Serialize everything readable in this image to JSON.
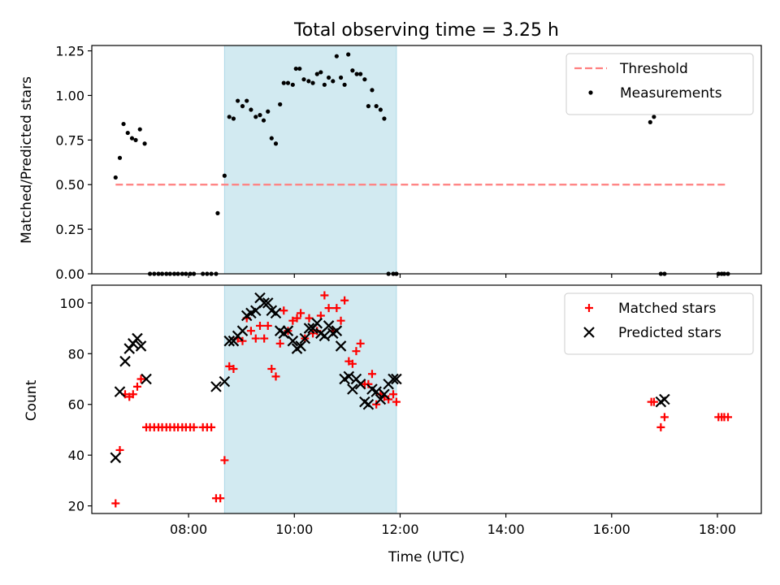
{
  "chart_data": [
    {
      "type": "scatter",
      "title": "Total observing time = 3.25 h",
      "xlabel": "",
      "ylabel": "Matched/Predicted stars",
      "xlim": [
        6.17,
        18.83
      ],
      "ylim": [
        0.0,
        1.28
      ],
      "yticks": [
        0.0,
        0.25,
        0.5,
        0.75,
        1.0,
        1.25
      ],
      "ytick_labels": [
        "0.00",
        "0.25",
        "0.50",
        "0.75",
        "1.00",
        "1.25"
      ],
      "xticks": [
        8,
        10,
        12,
        14,
        16,
        18
      ],
      "show_xtick_labels": false,
      "grid": false,
      "legend": "top-right",
      "highlight_span": {
        "x0": 8.68,
        "x1": 11.93,
        "color": "#add8e6"
      },
      "threshold": {
        "name": "Threshold",
        "value": 0.5,
        "x0": 6.62,
        "x1": 18.2,
        "color": "#ff7f7f"
      },
      "series": [
        {
          "name": "Measurements",
          "color": "#000000",
          "x": [
            6.62,
            6.7,
            6.77,
            6.85,
            6.93,
            7.0,
            7.08,
            7.17,
            7.27,
            7.35,
            7.43,
            7.5,
            7.58,
            7.65,
            7.73,
            7.8,
            7.88,
            7.95,
            8.03,
            8.1,
            8.27,
            8.35,
            8.43,
            8.52,
            8.55,
            8.68,
            8.77,
            8.85,
            8.93,
            9.02,
            9.1,
            9.18,
            9.27,
            9.35,
            9.42,
            9.5,
            9.57,
            9.65,
            9.73,
            9.8,
            9.88,
            9.97,
            10.03,
            10.1,
            10.18,
            10.27,
            10.35,
            10.43,
            10.5,
            10.57,
            10.65,
            10.73,
            10.8,
            10.88,
            10.95,
            11.02,
            11.1,
            11.18,
            11.25,
            11.33,
            11.4,
            11.47,
            11.55,
            11.63,
            11.7,
            11.78,
            11.87,
            11.93,
            16.73,
            16.8,
            16.93,
            17.0,
            18.02,
            18.08,
            18.13,
            18.2
          ],
          "y": [
            0.54,
            0.65,
            0.84,
            0.79,
            0.76,
            0.75,
            0.81,
            0.73,
            0.0,
            0.0,
            0.0,
            0.0,
            0.0,
            0.0,
            0.0,
            0.0,
            0.0,
            0.0,
            0.0,
            0.0,
            0.0,
            0.0,
            0.0,
            0.0,
            0.34,
            0.55,
            0.88,
            0.87,
            0.97,
            0.94,
            0.97,
            0.92,
            0.88,
            0.89,
            0.86,
            0.91,
            0.76,
            0.73,
            0.95,
            1.07,
            1.07,
            1.06,
            1.15,
            1.15,
            1.09,
            1.08,
            1.07,
            1.12,
            1.13,
            1.06,
            1.1,
            1.08,
            1.22,
            1.1,
            1.06,
            1.23,
            1.14,
            1.12,
            1.12,
            1.09,
            0.94,
            1.03,
            0.94,
            0.92,
            0.87,
            0.0,
            0.0,
            0.0,
            0.85,
            0.88,
            0.0,
            0.0,
            0.0,
            0.0,
            0.0,
            0.0
          ]
        }
      ]
    },
    {
      "type": "scatter",
      "title": "",
      "xlabel": "Time (UTC)",
      "ylabel": "Count",
      "xlim": [
        6.17,
        18.83
      ],
      "ylim": [
        17,
        107
      ],
      "yticks": [
        20,
        40,
        60,
        80,
        100
      ],
      "ytick_labels": [
        "20",
        "40",
        "60",
        "80",
        "100"
      ],
      "xticks": [
        8,
        10,
        12,
        14,
        16,
        18
      ],
      "xtick_labels": [
        "08:00",
        "10:00",
        "12:00",
        "14:00",
        "16:00",
        "18:00"
      ],
      "grid": false,
      "legend": "top-right",
      "highlight_span": {
        "x0": 8.68,
        "x1": 11.93,
        "color": "#add8e6"
      },
      "series": [
        {
          "name": "Matched stars",
          "marker": "+",
          "color": "#ff0000",
          "x": [
            6.62,
            6.7,
            6.8,
            6.88,
            6.95,
            7.03,
            7.1,
            7.2,
            7.27,
            7.35,
            7.43,
            7.5,
            7.58,
            7.65,
            7.73,
            7.8,
            7.88,
            7.95,
            8.03,
            8.1,
            8.27,
            8.35,
            8.43,
            8.52,
            8.6,
            8.68,
            8.77,
            8.85,
            8.93,
            9.02,
            9.1,
            9.18,
            9.27,
            9.35,
            9.43,
            9.5,
            9.57,
            9.65,
            9.73,
            9.8,
            9.88,
            9.97,
            10.05,
            10.12,
            10.2,
            10.28,
            10.35,
            10.43,
            10.5,
            10.57,
            10.65,
            10.73,
            10.8,
            10.88,
            10.95,
            11.03,
            11.1,
            11.17,
            11.25,
            11.33,
            11.4,
            11.47,
            11.55,
            11.63,
            11.7,
            11.78,
            11.87,
            11.93,
            16.75,
            16.8,
            16.93,
            17.0,
            18.02,
            18.08,
            18.13,
            18.2
          ],
          "y": [
            21,
            42,
            64,
            63,
            64,
            67,
            70,
            51,
            51,
            51,
            51,
            51,
            51,
            51,
            51,
            51,
            51,
            51,
            51,
            51,
            51,
            51,
            51,
            23,
            23,
            38,
            75,
            74,
            86,
            85,
            94,
            89,
            86,
            91,
            86,
            91,
            74,
            71,
            84,
            97,
            89,
            93,
            94,
            96,
            86,
            94,
            88,
            89,
            95,
            103,
            98,
            89,
            98,
            93,
            101,
            77,
            76,
            81,
            84,
            68,
            68,
            72,
            60,
            64,
            63,
            62,
            64,
            61,
            61,
            61,
            51,
            55,
            55,
            55,
            55,
            55
          ]
        },
        {
          "name": "Predicted stars",
          "marker": "x",
          "color": "#000000",
          "x": [
            6.62,
            6.7,
            6.8,
            6.88,
            6.95,
            7.03,
            7.1,
            7.2,
            8.52,
            8.68,
            8.77,
            8.85,
            8.93,
            9.02,
            9.1,
            9.18,
            9.27,
            9.35,
            9.43,
            9.5,
            9.57,
            9.65,
            9.73,
            9.8,
            9.88,
            9.97,
            10.05,
            10.12,
            10.2,
            10.28,
            10.35,
            10.43,
            10.5,
            10.57,
            10.65,
            10.73,
            10.8,
            10.88,
            10.95,
            11.03,
            11.1,
            11.17,
            11.25,
            11.33,
            11.4,
            11.47,
            11.55,
            11.63,
            11.7,
            11.78,
            11.87,
            11.93,
            16.93,
            17.0
          ],
          "y": [
            39,
            65,
            77,
            82,
            84,
            86,
            83,
            70,
            67,
            69,
            85,
            85,
            87,
            89,
            95,
            96,
            97,
            102,
            100,
            100,
            97,
            96,
            89,
            88,
            89,
            85,
            82,
            83,
            86,
            90,
            90,
            92,
            88,
            87,
            91,
            88,
            89,
            83,
            70,
            71,
            66,
            70,
            68,
            61,
            60,
            66,
            65,
            62,
            64,
            68,
            70,
            70,
            61,
            62
          ]
        }
      ]
    }
  ]
}
